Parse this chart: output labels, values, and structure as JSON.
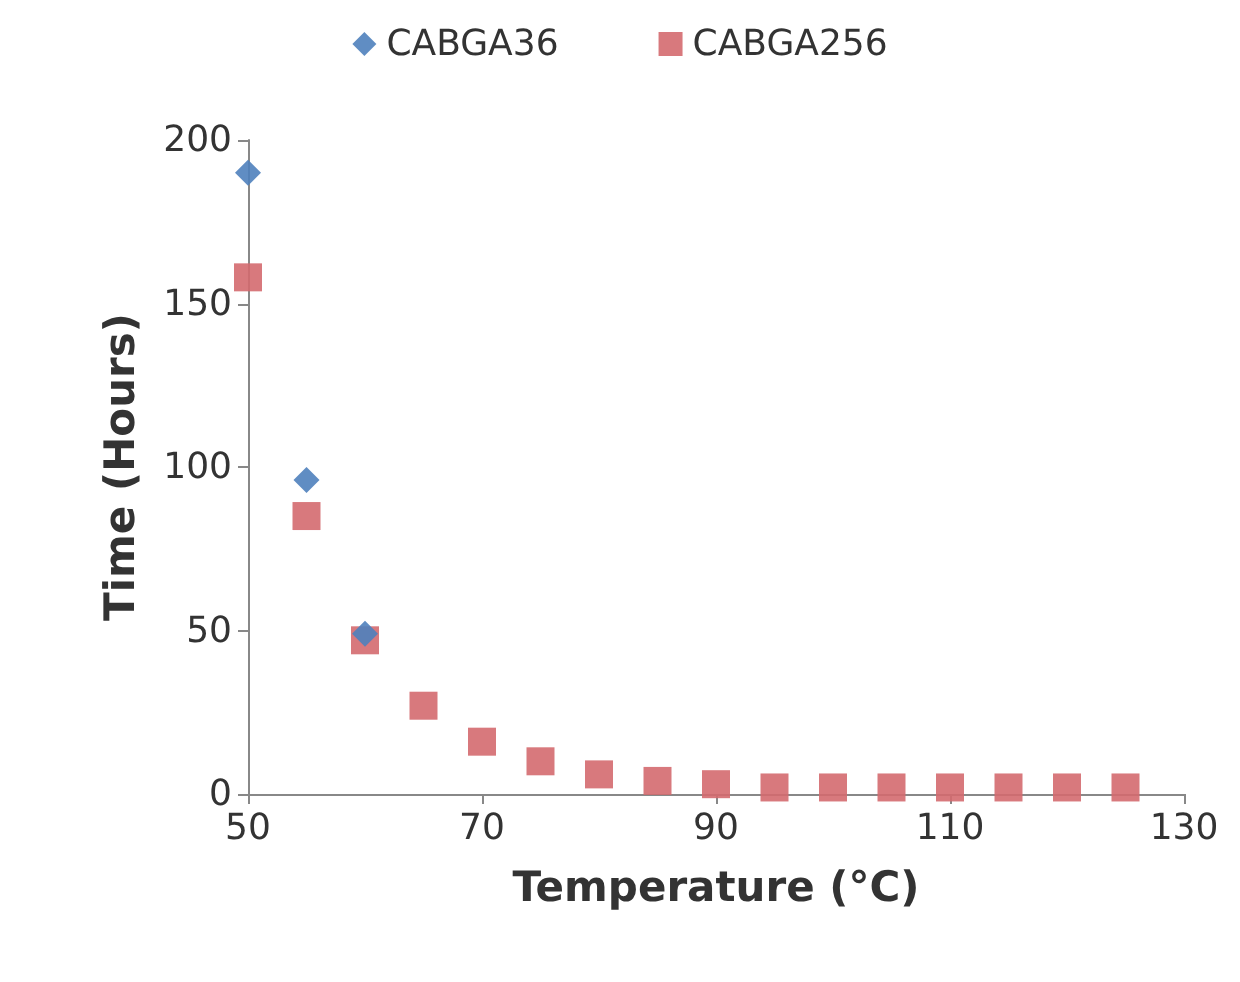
{
  "chart_data": {
    "type": "scatter",
    "xlabel": "Temperature (°C)",
    "ylabel": "Time (Hours)",
    "xlim": [
      50,
      130
    ],
    "xticks": [
      50,
      70,
      90,
      110,
      130
    ],
    "ylim": [
      0,
      200
    ],
    "yticks": [
      0,
      50,
      100,
      150,
      200
    ],
    "grid": false,
    "legend": "top",
    "series": [
      {
        "name": "CABGA36",
        "color": "#4f81bd",
        "marker": "diamond",
        "x": [
          50,
          55,
          60
        ],
        "values": [
          190,
          96,
          49
        ]
      },
      {
        "name": "CABGA256",
        "color": "#d46a6f",
        "marker": "square",
        "x": [
          50,
          55,
          60,
          65,
          70,
          75,
          80,
          85,
          90,
          95,
          100,
          105,
          110,
          115,
          120,
          125
        ],
        "values": [
          158,
          85,
          47,
          27,
          16,
          10,
          6,
          4,
          3,
          2,
          2,
          2,
          2,
          2,
          2,
          2
        ]
      }
    ]
  }
}
